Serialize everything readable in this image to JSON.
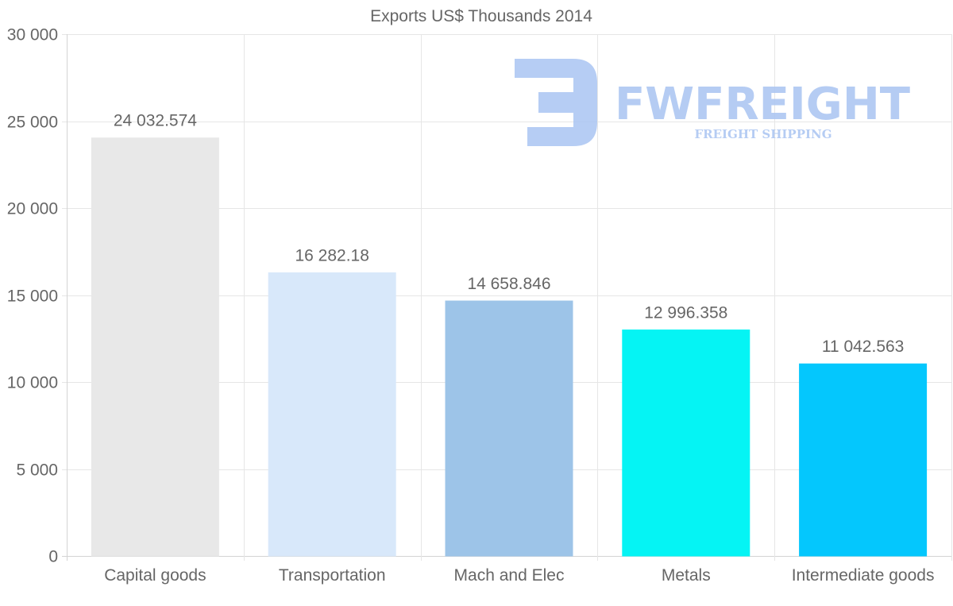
{
  "chart_data": {
    "type": "bar",
    "title": "Exports US$ Thousands 2014",
    "categories": [
      "Capital goods",
      "Transportation",
      "Mach and Elec",
      "Metals",
      "Intermediate goods"
    ],
    "values": [
      24032.574,
      16282.18,
      14658.846,
      12996.358,
      11042.563
    ],
    "value_labels": [
      "24 032.574",
      "16 282.18",
      "14 658.846",
      "12 996.358",
      "11 042.563"
    ],
    "colors": [
      "#e8e8e8",
      "#d8e8fa",
      "#9dc4e8",
      "#05f4f4",
      "#04c7fd"
    ],
    "xlabel": "",
    "ylabel": "",
    "ylim": [
      0,
      30000
    ],
    "yticks": [
      0,
      5000,
      10000,
      15000,
      20000,
      25000,
      30000
    ],
    "ytick_labels": [
      "0",
      "5 000",
      "10 000",
      "15 000",
      "20 000",
      "25 000",
      "30 000"
    ],
    "grid": true
  },
  "watermark": {
    "brand": "FWFREIGHT",
    "tagline": "FREIGHT SHIPPING",
    "color": "#a9c4f2"
  }
}
